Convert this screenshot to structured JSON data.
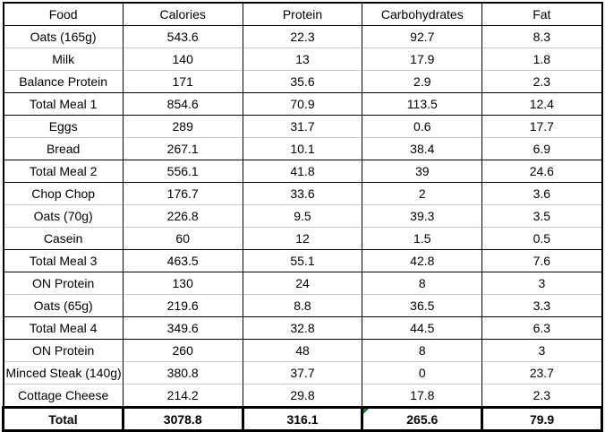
{
  "chart_data": {
    "type": "table",
    "columns": [
      "Food",
      "Calories",
      "Protein",
      "Carbohydrates",
      "Fat"
    ],
    "rows": [
      {
        "kind": "item",
        "sep": "black",
        "cells": [
          "Oats (165g)",
          "543.6",
          "22.3",
          "92.7",
          "8.3"
        ]
      },
      {
        "kind": "item",
        "sep": "gray",
        "cells": [
          "Milk",
          "140",
          "13",
          "17.9",
          "1.8"
        ]
      },
      {
        "kind": "item",
        "sep": "gray",
        "cells": [
          "Balance Protein",
          "171",
          "35.6",
          "2.9",
          "2.3"
        ]
      },
      {
        "kind": "meal-total",
        "sep": "black",
        "cells": [
          "Total Meal 1",
          "854.6",
          "70.9",
          "113.5",
          "12.4"
        ]
      },
      {
        "kind": "item",
        "sep": "black",
        "cells": [
          "Eggs",
          "289",
          "31.7",
          "0.6",
          "17.7"
        ]
      },
      {
        "kind": "item",
        "sep": "gray",
        "cells": [
          "Bread",
          "267.1",
          "10.1",
          "38.4",
          "6.9"
        ]
      },
      {
        "kind": "meal-total",
        "sep": "black",
        "cells": [
          "Total Meal 2",
          "556.1",
          "41.8",
          "39",
          "24.6"
        ]
      },
      {
        "kind": "item",
        "sep": "black",
        "cells": [
          "Chop Chop",
          "176.7",
          "33.6",
          "2",
          "3.6"
        ]
      },
      {
        "kind": "item",
        "sep": "gray",
        "cells": [
          "Oats (70g)",
          "226.8",
          "9.5",
          "39.3",
          "3.5"
        ]
      },
      {
        "kind": "item",
        "sep": "gray",
        "cells": [
          "Casein",
          "60",
          "12",
          "1.5",
          "0.5"
        ]
      },
      {
        "kind": "meal-total",
        "sep": "black",
        "cells": [
          "Total Meal 3",
          "463.5",
          "55.1",
          "42.8",
          "7.6"
        ]
      },
      {
        "kind": "item",
        "sep": "black",
        "cells": [
          "ON Protein",
          "130",
          "24",
          "8",
          "3"
        ]
      },
      {
        "kind": "item",
        "sep": "gray",
        "cells": [
          "Oats (65g)",
          "219.6",
          "8.8",
          "36.5",
          "3.3"
        ]
      },
      {
        "kind": "meal-total",
        "sep": "black",
        "cells": [
          "Total Meal 4",
          "349.6",
          "32.8",
          "44.5",
          "6.3"
        ]
      },
      {
        "kind": "item",
        "sep": "black",
        "cells": [
          "ON Protein",
          "260",
          "48",
          "8",
          "3"
        ]
      },
      {
        "kind": "item",
        "sep": "gray",
        "cells": [
          "Minced Steak (140g)",
          "380.8",
          "37.7",
          "0",
          "23.7"
        ]
      },
      {
        "kind": "item",
        "sep": "gray",
        "cells": [
          "Cottage Cheese",
          "214.2",
          "29.8",
          "17.8",
          "2.3"
        ]
      },
      {
        "kind": "grand-total",
        "sep": "thick",
        "cells": [
          "Total",
          "3078.8",
          "316.1",
          "265.6",
          "79.9"
        ],
        "indicator_cell_index": 3
      }
    ],
    "title": "",
    "layout": {
      "grid": "bordered-groups",
      "text_align": "center"
    }
  },
  "colors": {
    "border": "#000000",
    "gridline": "#c6c6c6",
    "background": "#ffffff",
    "text": "#000000",
    "error_indicator_green": "#1e7a34"
  },
  "indicators": {
    "formula_error_triangle": "green triangle, top-left of Carbohydrates total cell"
  }
}
